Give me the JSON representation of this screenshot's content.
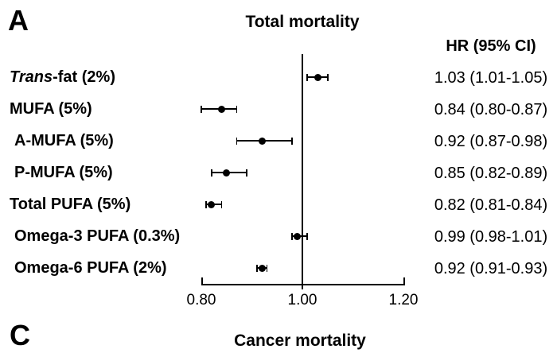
{
  "panel_a": {
    "label": "A",
    "title": "Total mortality",
    "hr_header": "HR (95% CI)"
  },
  "panel_c": {
    "label": "C",
    "title": "Cancer mortality"
  },
  "chart_data": {
    "type": "forest",
    "title": "Total mortality",
    "xlabel": "",
    "ylabel": "",
    "xlim": [
      0.8,
      1.2
    ],
    "reference_line": 1.0,
    "x_ticks": [
      0.8,
      1.0,
      1.2
    ],
    "x_tick_labels": [
      "0.80",
      "1.00",
      "1.20"
    ],
    "grid": false,
    "legend": "none",
    "value_column_header": "HR (95% CI)",
    "rows": [
      {
        "label": "Trans-fat (2%)",
        "label_parts": [
          {
            "text": "Trans",
            "italic": true
          },
          {
            "text": "-fat (2%)",
            "italic": false
          }
        ],
        "indent": false,
        "hr": 1.03,
        "ci_low": 1.01,
        "ci_high": 1.05,
        "hr_text": "1.03 (1.01-1.05)"
      },
      {
        "label": "MUFA (5%)",
        "label_parts": [
          {
            "text": "MUFA (5%)",
            "italic": false
          }
        ],
        "indent": false,
        "hr": 0.84,
        "ci_low": 0.8,
        "ci_high": 0.87,
        "hr_text": "0.84 (0.80-0.87)"
      },
      {
        "label": "A-MUFA (5%)",
        "label_parts": [
          {
            "text": "A-MUFA (5%)",
            "italic": false
          }
        ],
        "indent": true,
        "hr": 0.92,
        "ci_low": 0.87,
        "ci_high": 0.98,
        "hr_text": "0.92 (0.87-0.98)"
      },
      {
        "label": "P-MUFA (5%)",
        "label_parts": [
          {
            "text": "P-MUFA (5%)",
            "italic": false
          }
        ],
        "indent": true,
        "hr": 0.85,
        "ci_low": 0.82,
        "ci_high": 0.89,
        "hr_text": "0.85 (0.82-0.89)"
      },
      {
        "label": "Total PUFA (5%)",
        "label_parts": [
          {
            "text": "Total PUFA (5%)",
            "italic": false
          }
        ],
        "indent": false,
        "hr": 0.82,
        "ci_low": 0.81,
        "ci_high": 0.84,
        "hr_text": "0.82 (0.81-0.84)"
      },
      {
        "label": "Omega-3 PUFA (0.3%)",
        "label_parts": [
          {
            "text": "Omega-3 PUFA (0.3%)",
            "italic": false
          }
        ],
        "indent": true,
        "hr": 0.99,
        "ci_low": 0.98,
        "ci_high": 1.01,
        "hr_text": "0.99 (0.98-1.01)"
      },
      {
        "label": "Omega-6 PUFA (2%)",
        "label_parts": [
          {
            "text": "Omega-6 PUFA (2%)",
            "italic": false
          }
        ],
        "indent": true,
        "hr": 0.92,
        "ci_low": 0.91,
        "ci_high": 0.93,
        "hr_text": "0.92 (0.91-0.93)"
      }
    ],
    "colors": {
      "marker": "#000000",
      "line": "#000000",
      "text": "#000000",
      "background": "#ffffff"
    }
  }
}
